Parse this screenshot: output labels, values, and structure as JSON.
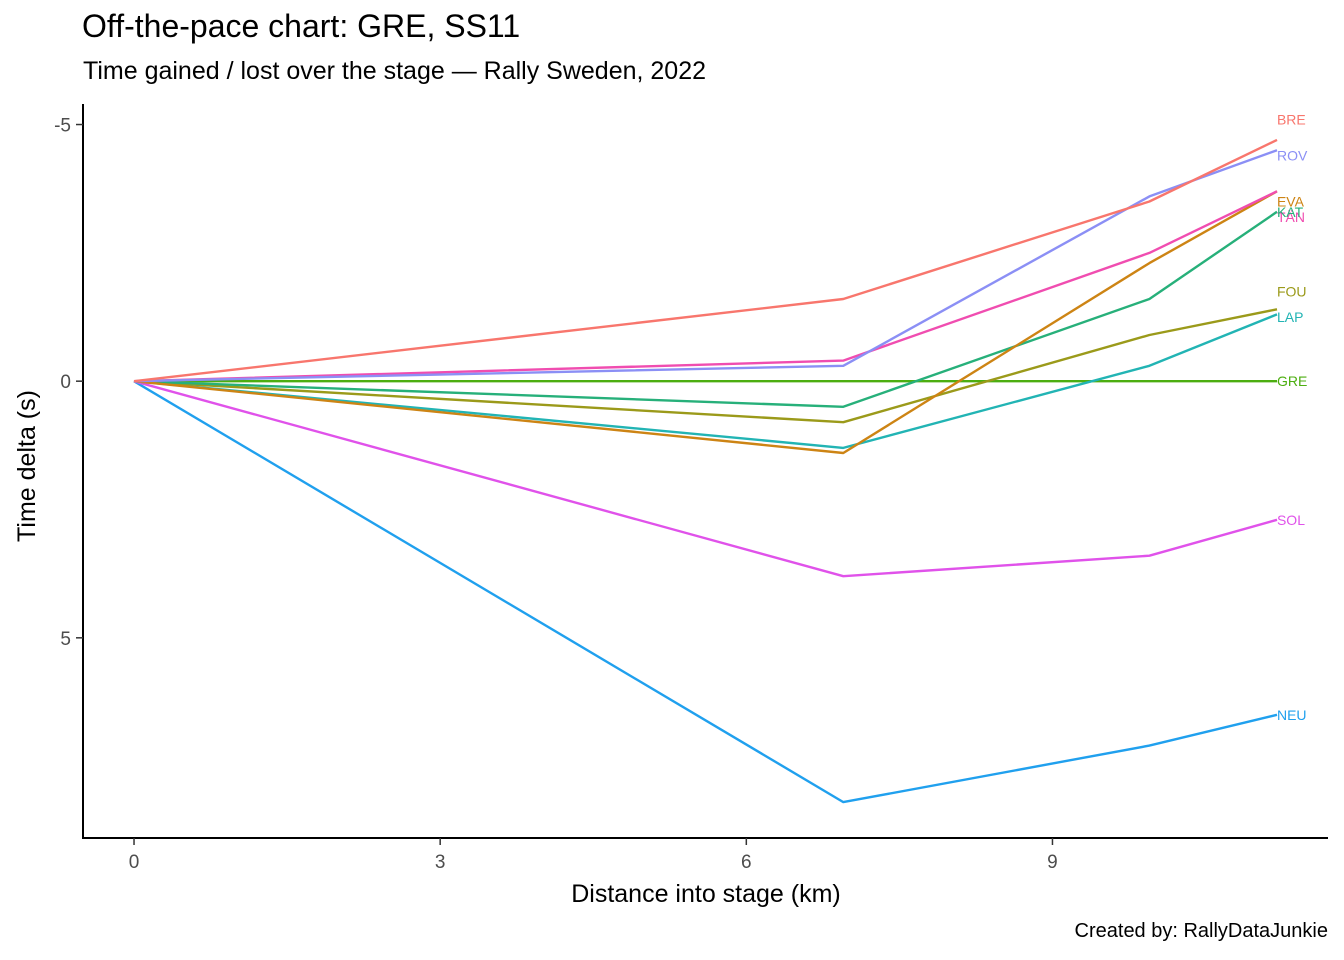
{
  "chart_data": {
    "type": "line",
    "title": "Off-the-pace chart: GRE, SS11",
    "subtitle": "Time gained / lost over the stage — Rally Sweden, 2022",
    "caption": "Created by: RallyDataJunkie",
    "xlabel": "Distance into stage (km)",
    "ylabel": "Time delta (s)",
    "xlim": [
      -0.5,
      11.7
    ],
    "ylim": [
      -5.4,
      8.9
    ],
    "y_reversed": true,
    "x_ticks": [
      0,
      3,
      6,
      9
    ],
    "y_ticks": [
      -5,
      0,
      5
    ],
    "grid": false,
    "legend": "none (direct labels at line ends)",
    "x": [
      0,
      6.95,
      9.95,
      11.2
    ],
    "series": [
      {
        "name": "BRE",
        "color": "#F8766D",
        "values": [
          0,
          -1.6,
          -3.5,
          -4.7
        ]
      },
      {
        "name": "ROV",
        "color": "#8B8FF5",
        "values": [
          0,
          -0.3,
          -3.6,
          -4.5
        ]
      },
      {
        "name": "TÄN",
        "color": "#F04DB0",
        "values": [
          0,
          -0.4,
          -2.5,
          -3.7
        ]
      },
      {
        "name": "EVA",
        "color": "#CD8414",
        "values": [
          0,
          1.4,
          -2.3,
          -3.7
        ]
      },
      {
        "name": "KAT",
        "color": "#27B07A",
        "values": [
          0,
          0.5,
          -1.6,
          -3.3
        ]
      },
      {
        "name": "FOU",
        "color": "#9B9A1A",
        "values": [
          0,
          0.8,
          -0.9,
          -1.4
        ]
      },
      {
        "name": "LAP",
        "color": "#22B4B4",
        "values": [
          0,
          1.3,
          -0.3,
          -1.3
        ]
      },
      {
        "name": "GRE",
        "color": "#4CAE10",
        "values": [
          0,
          0,
          0,
          0
        ]
      },
      {
        "name": "SOL",
        "color": "#E052EA",
        "values": [
          0,
          3.8,
          3.4,
          2.7
        ]
      },
      {
        "name": "NEU",
        "color": "#20A0EE",
        "values": [
          0,
          8.2,
          7.1,
          6.5
        ]
      }
    ],
    "label_offsets_s": {
      "BRE": -0.4,
      "ROV": 0.1,
      "TÄN": 0.5,
      "EVA": 0.2,
      "KAT": 0.0,
      "FOU": -0.35,
      "LAP": 0.05,
      "GRE": 0.0,
      "SOL": 0.0,
      "NEU": 0.0
    }
  }
}
